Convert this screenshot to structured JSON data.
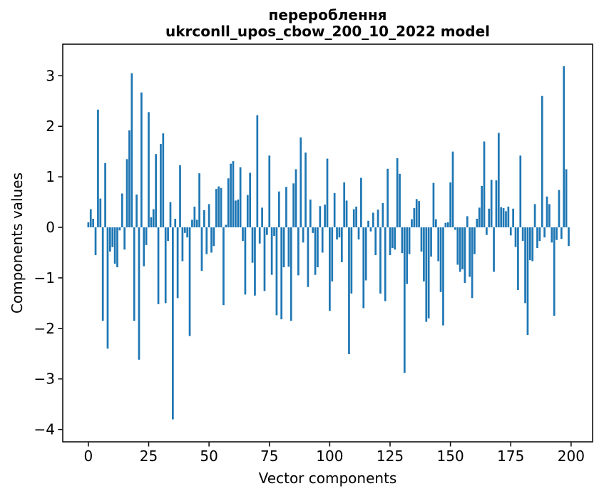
{
  "figure": {
    "title_line1": "перероблення",
    "title_line2": "ukrconll_upos_cbow_200_10_2022 model",
    "xlabel": "Vector components",
    "ylabel": "Components values",
    "background_color": "#ffffff",
    "spine_color": "#000000"
  },
  "chart_data": {
    "type": "bar",
    "title": "перероблення\nukrconll_upos_cbow_200_10_2022 model",
    "xlabel": "Vector components",
    "ylabel": "Components values",
    "bar_color": "#1f77b4",
    "grid": false,
    "legend_position": "none",
    "xticks": [
      0,
      25,
      50,
      75,
      100,
      125,
      150,
      175,
      200
    ],
    "yticks": [
      3,
      2,
      1,
      0,
      -1,
      -2,
      -3,
      -4
    ],
    "xlim": [
      -10.6,
      208.9
    ],
    "ylim": [
      -4.245,
      3.625
    ],
    "n_components": 200,
    "values": [
      0.1,
      0.36,
      0.17,
      -0.55,
      2.33,
      0.57,
      -1.85,
      1.27,
      -2.4,
      -0.48,
      -0.39,
      -0.72,
      -0.79,
      -0.06,
      0.67,
      -0.44,
      1.35,
      1.92,
      3.05,
      -1.85,
      0.65,
      -2.62,
      2.67,
      -0.77,
      -0.35,
      2.28,
      0.2,
      0.36,
      1.45,
      -1.52,
      1.65,
      1.86,
      -1.5,
      -0.27,
      0.5,
      -3.8,
      0.17,
      -1.4,
      1.23,
      -0.67,
      -0.11,
      -0.2,
      -2.15,
      0.15,
      0.41,
      0.15,
      1.07,
      -0.86,
      0.34,
      -0.53,
      0.46,
      -0.5,
      -0.37,
      0.76,
      0.81,
      0.78,
      -1.54,
      0.05,
      0.97,
      1.26,
      1.31,
      0.53,
      0.55,
      1.19,
      -0.27,
      -1.33,
      0.64,
      1.08,
      -0.7,
      -1.35,
      2.22,
      -0.32,
      0.39,
      -1.26,
      -0.15,
      1.42,
      -0.94,
      -0.17,
      -1.74,
      0.71,
      -1.82,
      -0.79,
      0.8,
      -0.78,
      -1.85,
      0.87,
      1.15,
      -0.95,
      1.78,
      -0.3,
      1.48,
      -1.18,
      0.55,
      -0.11,
      -0.94,
      -0.79,
      0.42,
      -0.5,
      0.45,
      1.36,
      -1.65,
      -1.07,
      0.68,
      -0.24,
      -0.2,
      -0.69,
      0.89,
      0.53,
      -2.51,
      -1.31,
      0.36,
      0.41,
      -0.24,
      0.98,
      -1.6,
      -1.05,
      0.13,
      -0.08,
      0.29,
      -0.55,
      0.35,
      -1.31,
      0.48,
      -1.46,
      1.16,
      -0.55,
      -0.41,
      -0.44,
      1.37,
      1.06,
      -0.51,
      -2.88,
      -1.12,
      -0.53,
      0.16,
      0.38,
      0.56,
      0.52,
      -0.48,
      -1.07,
      -1.87,
      -1.8,
      -0.58,
      0.88,
      0.16,
      -0.67,
      -1.28,
      -1.94,
      0.09,
      0.1,
      0.89,
      1.5,
      -0.05,
      -0.74,
      -0.88,
      -0.83,
      -1.1,
      0.22,
      -0.98,
      -1.4,
      -0.53,
      0.17,
      0.39,
      0.82,
      1.7,
      -0.15,
      0.37,
      0.94,
      -0.88,
      0.93,
      1.87,
      0.4,
      0.38,
      0.32,
      0.41,
      -0.16,
      0.37,
      -0.39,
      -1.24,
      1.42,
      -0.27,
      -1.5,
      -2.13,
      -0.65,
      -0.67,
      0.46,
      -0.41,
      -0.27,
      2.6,
      -0.2,
      0.61,
      0.46,
      -0.3,
      -1.75,
      -0.25,
      0.74,
      -0.23,
      3.19,
      1.15,
      -0.37
    ]
  }
}
